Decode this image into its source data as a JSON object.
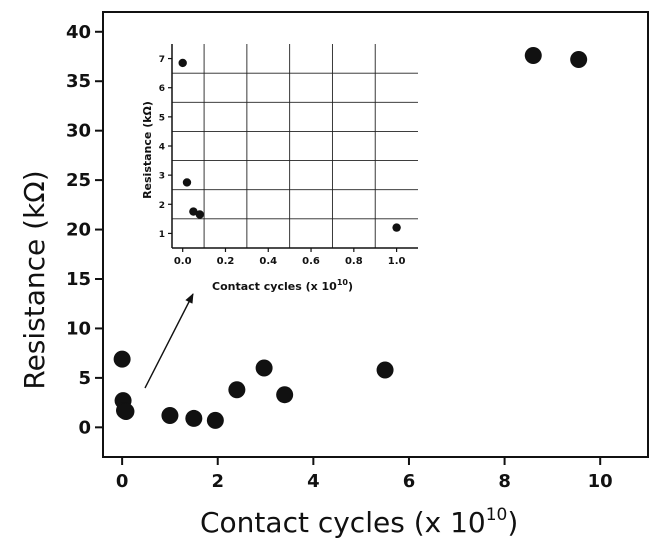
{
  "chart_data": [
    {
      "type": "scatter",
      "xlabel": "Contact cycles (x 10",
      "xlabel_exponent": "10",
      "xlabel_close": ")",
      "ylabel": "Resistance (kΩ)",
      "xlim": [
        -0.4,
        11
      ],
      "ylim": [
        -3,
        42
      ],
      "x_ticks": [
        0,
        2,
        4,
        6,
        8,
        10
      ],
      "x_tick_labels": [
        "0",
        "2",
        "4",
        "6",
        "8",
        "10"
      ],
      "y_ticks": [
        0,
        5,
        10,
        15,
        20,
        25,
        30,
        35,
        40
      ],
      "y_tick_labels": [
        "0",
        "5",
        "10",
        "15",
        "20",
        "25",
        "30",
        "35",
        "40"
      ],
      "grid": false,
      "points": [
        {
          "x": 0.0,
          "y": 6.9
        },
        {
          "x": 0.02,
          "y": 2.7
        },
        {
          "x": 0.05,
          "y": 1.7
        },
        {
          "x": 0.08,
          "y": 1.6
        },
        {
          "x": 1.0,
          "y": 1.2
        },
        {
          "x": 1.5,
          "y": 0.9
        },
        {
          "x": 1.95,
          "y": 0.7
        },
        {
          "x": 2.4,
          "y": 3.8
        },
        {
          "x": 2.97,
          "y": 6.0
        },
        {
          "x": 3.4,
          "y": 3.3
        },
        {
          "x": 5.5,
          "y": 5.8
        },
        {
          "x": 8.6,
          "y": 37.6
        },
        {
          "x": 9.55,
          "y": 37.2
        }
      ]
    },
    {
      "type": "scatter",
      "xlabel": "Contact cycles (x 10",
      "xlabel_exponent": "10",
      "xlabel_close": ")",
      "ylabel": "Resistance (kΩ)",
      "xlim": [
        -0.05,
        1.1
      ],
      "ylim": [
        0.5,
        7.5
      ],
      "x_ticks": [
        0.0,
        0.2,
        0.4,
        0.6,
        0.8,
        1.0
      ],
      "x_tick_labels": [
        "0.0",
        "0.2",
        "0.4",
        "0.6",
        "0.8",
        "1.0"
      ],
      "y_ticks": [
        1,
        2,
        3,
        4,
        5,
        6,
        7
      ],
      "y_tick_labels": [
        "1",
        "2",
        "3",
        "4",
        "5",
        "6",
        "7"
      ],
      "grid": true,
      "vertical_grid": [
        0.1,
        0.3,
        0.5,
        0.7,
        0.9
      ],
      "horizontal_grid": [
        1.5,
        2.5,
        3.5,
        4.5,
        5.5,
        6.5
      ],
      "points": [
        {
          "x": 0.0,
          "y": 6.85
        },
        {
          "x": 0.02,
          "y": 2.75
        },
        {
          "x": 0.05,
          "y": 1.75
        },
        {
          "x": 0.08,
          "y": 1.65
        },
        {
          "x": 1.0,
          "y": 1.2
        }
      ]
    }
  ]
}
